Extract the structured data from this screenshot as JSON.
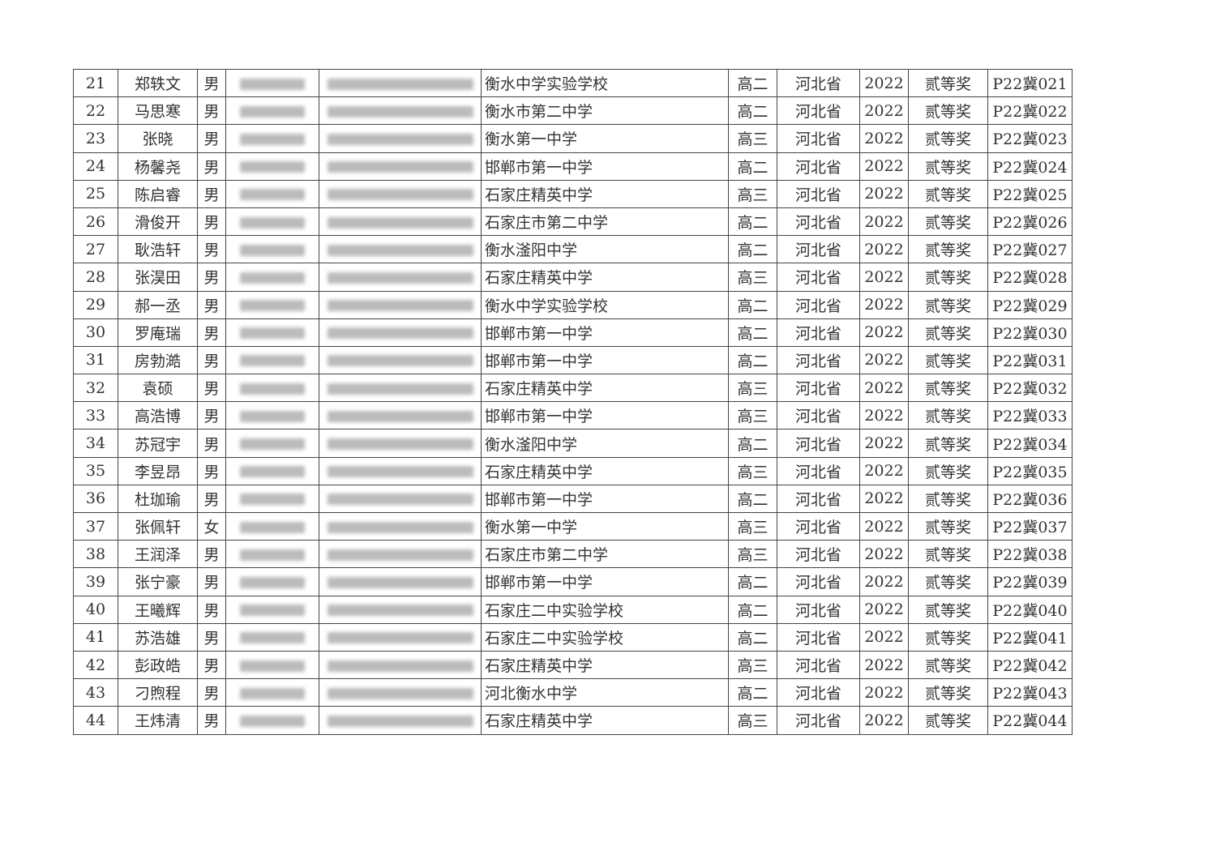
{
  "table": {
    "province": "河北省",
    "year": "2022",
    "award": "贰等奖",
    "rows": [
      {
        "no": "21",
        "name": "郑轶文",
        "gender": "男",
        "school": "衡水中学实验学校",
        "grade": "高二",
        "code": "P22冀021"
      },
      {
        "no": "22",
        "name": "马思寒",
        "gender": "男",
        "school": "衡水市第二中学",
        "grade": "高二",
        "code": "P22冀022"
      },
      {
        "no": "23",
        "name": "张晓",
        "gender": "男",
        "school": "衡水第一中学",
        "grade": "高三",
        "code": "P22冀023"
      },
      {
        "no": "24",
        "name": "杨馨尧",
        "gender": "男",
        "school": "邯郸市第一中学",
        "grade": "高二",
        "code": "P22冀024"
      },
      {
        "no": "25",
        "name": "陈启睿",
        "gender": "男",
        "school": "石家庄精英中学",
        "grade": "高三",
        "code": "P22冀025"
      },
      {
        "no": "26",
        "name": "滑俊开",
        "gender": "男",
        "school": "石家庄市第二中学",
        "grade": "高二",
        "code": "P22冀026"
      },
      {
        "no": "27",
        "name": "耿浩轩",
        "gender": "男",
        "school": "衡水滏阳中学",
        "grade": "高二",
        "code": "P22冀027"
      },
      {
        "no": "28",
        "name": "张淏田",
        "gender": "男",
        "school": "石家庄精英中学",
        "grade": "高三",
        "code": "P22冀028"
      },
      {
        "no": "29",
        "name": "郝一丞",
        "gender": "男",
        "school": "衡水中学实验学校",
        "grade": "高二",
        "code": "P22冀029"
      },
      {
        "no": "30",
        "name": "罗庵瑞",
        "gender": "男",
        "school": "邯郸市第一中学",
        "grade": "高二",
        "code": "P22冀030"
      },
      {
        "no": "31",
        "name": "房勃澔",
        "gender": "男",
        "school": "邯郸市第一中学",
        "grade": "高二",
        "code": "P22冀031"
      },
      {
        "no": "32",
        "name": "袁硕",
        "gender": "男",
        "school": "石家庄精英中学",
        "grade": "高三",
        "code": "P22冀032"
      },
      {
        "no": "33",
        "name": "高浩博",
        "gender": "男",
        "school": "邯郸市第一中学",
        "grade": "高三",
        "code": "P22冀033"
      },
      {
        "no": "34",
        "name": "苏冠宇",
        "gender": "男",
        "school": "衡水滏阳中学",
        "grade": "高二",
        "code": "P22冀034"
      },
      {
        "no": "35",
        "name": "李昱昂",
        "gender": "男",
        "school": "石家庄精英中学",
        "grade": "高三",
        "code": "P22冀035"
      },
      {
        "no": "36",
        "name": "杜珈瑜",
        "gender": "男",
        "school": "邯郸市第一中学",
        "grade": "高二",
        "code": "P22冀036"
      },
      {
        "no": "37",
        "name": "张佩轩",
        "gender": "女",
        "school": "衡水第一中学",
        "grade": "高三",
        "code": "P22冀037"
      },
      {
        "no": "38",
        "name": "王润泽",
        "gender": "男",
        "school": "石家庄市第二中学",
        "grade": "高三",
        "code": "P22冀038"
      },
      {
        "no": "39",
        "name": "张宁豪",
        "gender": "男",
        "school": "邯郸市第一中学",
        "grade": "高二",
        "code": "P22冀039"
      },
      {
        "no": "40",
        "name": "王曦辉",
        "gender": "男",
        "school": "石家庄二中实验学校",
        "grade": "高二",
        "code": "P22冀040"
      },
      {
        "no": "41",
        "name": "苏浩雄",
        "gender": "男",
        "school": "石家庄二中实验学校",
        "grade": "高二",
        "code": "P22冀041"
      },
      {
        "no": "42",
        "name": "彭政皓",
        "gender": "男",
        "school": "石家庄精英中学",
        "grade": "高三",
        "code": "P22冀042"
      },
      {
        "no": "43",
        "name": "刁煦程",
        "gender": "男",
        "school": "河北衡水中学",
        "grade": "高二",
        "code": "P22冀043"
      },
      {
        "no": "44",
        "name": "王炜清",
        "gender": "男",
        "school": "石家庄精英中学",
        "grade": "高三",
        "code": "P22冀044"
      }
    ]
  }
}
